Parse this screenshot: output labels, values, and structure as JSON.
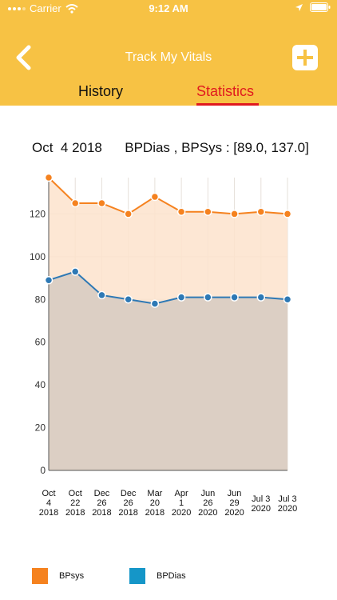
{
  "status_bar": {
    "carrier": "Carrier",
    "time": "9:12 AM"
  },
  "nav": {
    "title": "Track My Vitals",
    "back_icon": "chevron-left-icon",
    "add_icon": "plus-icon"
  },
  "tabs": [
    {
      "label": "History",
      "selected": false
    },
    {
      "label": "Statistics",
      "selected": true
    }
  ],
  "summary": {
    "date": "Oct  4 2018",
    "text": "BPDias , BPSys : [89.0, 137.0]"
  },
  "colors": {
    "header": "#f7c244",
    "sys": "#f5821f",
    "sys_fill": "#fde3cd",
    "dias": "#2e79b5",
    "dias_fill": "#dccfc4",
    "selected_tab": "#e0191f"
  },
  "chart_data": {
    "type": "line",
    "ylim": [
      0,
      137
    ],
    "yticks": [
      0,
      20,
      40,
      60,
      80,
      100,
      120
    ],
    "categories": [
      [
        "Oct",
        "4",
        "2018"
      ],
      [
        "Oct",
        "22",
        "2018"
      ],
      [
        "Dec",
        "26",
        "2018"
      ],
      [
        "Dec",
        "26",
        "2018"
      ],
      [
        "Mar",
        "20",
        "2018"
      ],
      [
        "Apr",
        "1",
        "2020"
      ],
      [
        "Jun",
        "26",
        "2020"
      ],
      [
        "Jun",
        "29",
        "2020"
      ],
      [
        "Jul  3",
        "2020"
      ],
      [
        "Jul  3",
        "2020"
      ]
    ],
    "series": [
      {
        "name": "BPsys",
        "values": [
          137,
          125,
          125,
          120,
          128,
          121,
          121,
          120,
          121,
          120
        ]
      },
      {
        "name": "BPDias",
        "values": [
          89,
          93,
          82,
          80,
          78,
          81,
          81,
          81,
          81,
          80
        ]
      }
    ],
    "grid": true,
    "legend": "bottom-left"
  },
  "legend": [
    {
      "label": "BPsys",
      "color": "#f5821f"
    },
    {
      "label": "BPDias",
      "color": "#1596c8"
    }
  ]
}
